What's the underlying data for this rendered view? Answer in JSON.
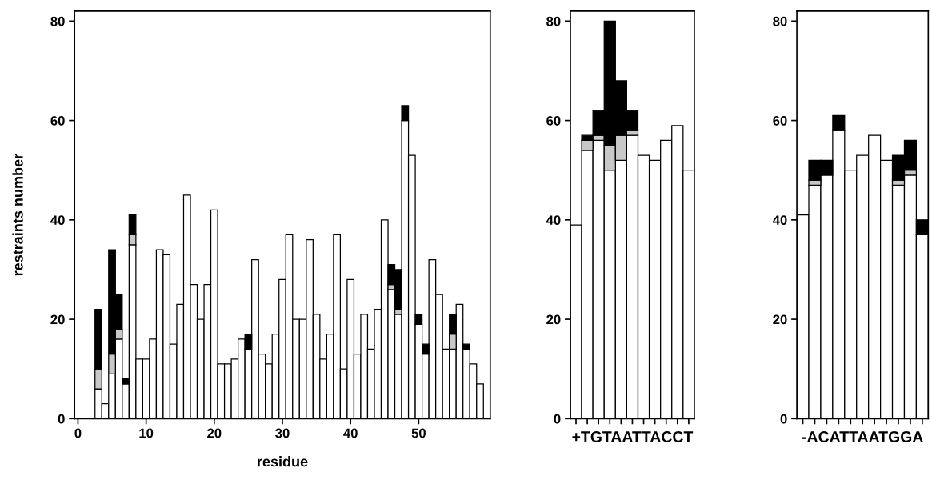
{
  "chart_data": [
    {
      "type": "bar",
      "stacked": true,
      "xlabel": "residue",
      "ylabel": "restraints number",
      "xlim": [
        -0.5,
        60.5
      ],
      "xticks": [
        0,
        10,
        20,
        30,
        40,
        50
      ],
      "ylim": [
        0,
        82
      ],
      "yticks": [
        0,
        20,
        40,
        60,
        80
      ],
      "grid": false,
      "x": [
        3,
        4,
        5,
        6,
        7,
        8,
        9,
        10,
        11,
        12,
        13,
        14,
        15,
        16,
        17,
        18,
        19,
        20,
        21,
        22,
        23,
        24,
        25,
        26,
        27,
        28,
        29,
        30,
        31,
        32,
        33,
        34,
        35,
        36,
        37,
        38,
        39,
        40,
        41,
        42,
        43,
        44,
        45,
        46,
        47,
        48,
        49,
        50,
        51,
        52,
        53,
        54,
        55,
        56,
        57,
        58,
        59
      ],
      "series": [
        {
          "color": "#ffffff",
          "values": [
            6,
            3,
            9,
            16,
            7,
            35,
            12,
            12,
            16,
            34,
            33,
            15,
            23,
            45,
            27,
            20,
            27,
            42,
            11,
            11,
            12,
            16,
            14,
            32,
            13,
            11,
            17,
            28,
            37,
            20,
            20,
            36,
            21,
            12,
            17,
            37,
            10,
            28,
            13,
            21,
            14,
            22,
            40,
            26,
            21,
            60,
            53,
            19,
            13,
            32,
            25,
            14,
            14,
            23,
            14,
            11,
            7
          ]
        },
        {
          "color": "#c8c8c8",
          "values": [
            4,
            0,
            4,
            2,
            0,
            2,
            0,
            0,
            0,
            0,
            0,
            0,
            0,
            0,
            0,
            0,
            0,
            0,
            0,
            0,
            0,
            0,
            0,
            0,
            0,
            0,
            0,
            0,
            0,
            0,
            0,
            0,
            0,
            0,
            0,
            0,
            0,
            0,
            0,
            0,
            0,
            0,
            0,
            1,
            1,
            0,
            0,
            0,
            0,
            0,
            0,
            0,
            3,
            0,
            0,
            0,
            0
          ]
        },
        {
          "color": "#000000",
          "values": [
            12,
            0,
            21,
            7,
            1,
            4,
            0,
            0,
            0,
            0,
            0,
            0,
            0,
            0,
            0,
            0,
            0,
            0,
            0,
            0,
            0,
            0,
            3,
            0,
            0,
            0,
            0,
            0,
            0,
            0,
            0,
            0,
            0,
            0,
            0,
            0,
            0,
            0,
            0,
            0,
            0,
            0,
            0,
            4,
            8,
            3,
            0,
            2,
            2,
            0,
            0,
            0,
            4,
            0,
            1,
            0,
            0
          ]
        }
      ]
    },
    {
      "type": "bar",
      "stacked": true,
      "xlabel": "+TGTAATTACCT",
      "categories": [
        null,
        null,
        null,
        null,
        null,
        null,
        null,
        null,
        null,
        null,
        null
      ],
      "ylim": [
        0,
        82
      ],
      "yticks": [
        0,
        20,
        40,
        60,
        80
      ],
      "grid": false,
      "tick_labels": "y",
      "series": [
        {
          "color": "#ffffff",
          "values": [
            39,
            54,
            56,
            50,
            52,
            57,
            53,
            52,
            56,
            59,
            50
          ]
        },
        {
          "color": "#c8c8c8",
          "values": [
            0,
            2,
            1,
            5,
            5,
            1,
            0,
            0,
            0,
            0,
            0
          ]
        },
        {
          "color": "#000000",
          "values": [
            0,
            1,
            5,
            25,
            11,
            4,
            0,
            0,
            0,
            0,
            0
          ]
        }
      ]
    },
    {
      "type": "bar",
      "stacked": true,
      "xlabel": "-ACATTAATGGA",
      "categories": [
        null,
        null,
        null,
        null,
        null,
        null,
        null,
        null,
        null,
        null,
        null
      ],
      "ylim": [
        0,
        82
      ],
      "yticks": [
        0,
        20,
        40,
        60,
        80
      ],
      "grid": false,
      "tick_labels": "y",
      "series": [
        {
          "color": "#ffffff",
          "values": [
            41,
            47,
            49,
            58,
            50,
            53,
            57,
            52,
            47,
            49,
            37
          ]
        },
        {
          "color": "#c8c8c8",
          "values": [
            0,
            1,
            0,
            0,
            0,
            0,
            0,
            0,
            1,
            1,
            0
          ]
        },
        {
          "color": "#000000",
          "values": [
            0,
            4,
            3,
            3,
            0,
            0,
            0,
            0,
            5,
            6,
            3
          ]
        }
      ]
    }
  ]
}
